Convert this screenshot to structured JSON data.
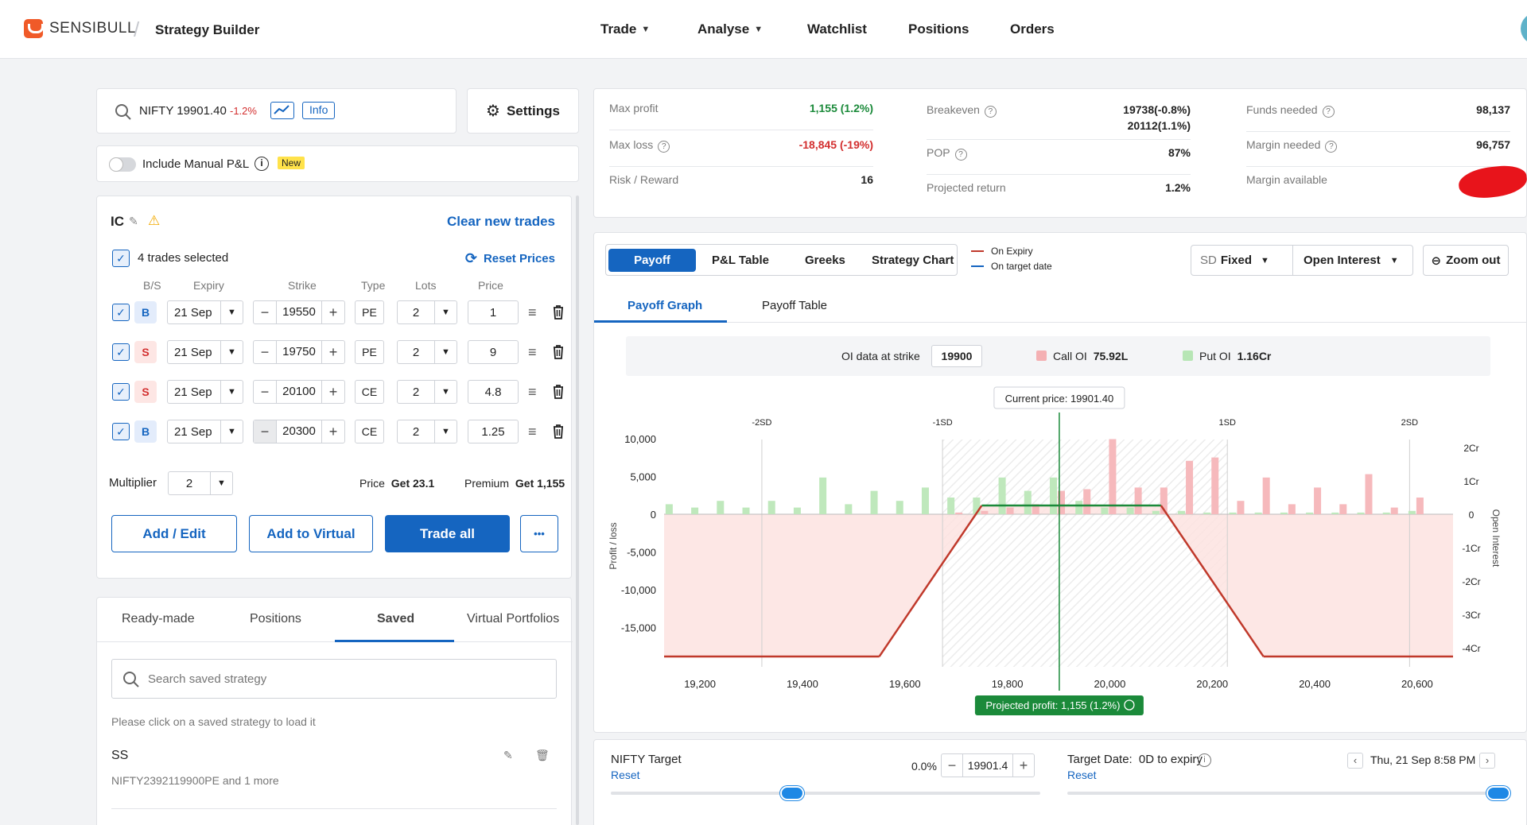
{
  "header": {
    "brand": "SENSIBULL",
    "page_title": "Strategy Builder",
    "nav": [
      {
        "label": "Trade",
        "dropdown": true
      },
      {
        "label": "Analyse",
        "dropdown": true
      },
      {
        "label": "Watchlist",
        "dropdown": false
      },
      {
        "label": "Positions",
        "dropdown": false
      },
      {
        "label": "Orders",
        "dropdown": false
      }
    ]
  },
  "search": {
    "symbol": "NIFTY",
    "price": "19901.40",
    "change": "-1.2%",
    "info_label": "Info",
    "settings_label": "Settings"
  },
  "manual_pnl": {
    "label": "Include Manual P&L",
    "badge": "New"
  },
  "strategy": {
    "name": "IC",
    "clear_label": "Clear new trades",
    "trades_selected": "4 trades selected",
    "reset_prices": "Reset Prices",
    "columns": [
      "B/S",
      "Expiry",
      "Strike",
      "Type",
      "Lots",
      "Price"
    ],
    "trades": [
      {
        "side": "B",
        "expiry": "21 Sep",
        "strike": "19550",
        "type": "PE",
        "lots": "2",
        "price": "1"
      },
      {
        "side": "S",
        "expiry": "21 Sep",
        "strike": "19750",
        "type": "PE",
        "lots": "2",
        "price": "9"
      },
      {
        "side": "S",
        "expiry": "21 Sep",
        "strike": "20100",
        "type": "CE",
        "lots": "2",
        "price": "4.8"
      },
      {
        "side": "B",
        "expiry": "21 Sep",
        "strike": "20300",
        "type": "CE",
        "lots": "2",
        "price": "1.25"
      }
    ],
    "multiplier_label": "Multiplier",
    "multiplier": "2",
    "price_label": "Price",
    "price_value": "Get 23.1",
    "premium_label": "Premium",
    "premium_value": "Get 1,155",
    "buttons": {
      "add_edit": "Add / Edit",
      "add_virtual": "Add to Virtual",
      "trade_all": "Trade all",
      "more": "•••"
    }
  },
  "bottom_tabs": {
    "tabs": [
      "Ready-made",
      "Positions",
      "Saved",
      "Virtual Portfolios"
    ],
    "active": 2,
    "search_placeholder": "Search saved strategy",
    "hint": "Please click on a saved strategy to load it",
    "saved": [
      {
        "name": "SS",
        "detail": "NIFTY2392119900PE and 1 more"
      }
    ]
  },
  "stats": {
    "col1": [
      {
        "label": "Max profit",
        "value": "1,155 (1.2%)",
        "color": "#1b8a3a"
      },
      {
        "label": "Max loss",
        "value": "-18,845 (-19%)",
        "color": "#d32f2f"
      },
      {
        "label": "Risk / Reward",
        "value": "16",
        "color": "#222222"
      }
    ],
    "col2": [
      {
        "label": "Breakeven",
        "value": "19738(-0.8%)",
        "value2": "20112(1.1%)"
      },
      {
        "label": "POP",
        "value": "87%"
      },
      {
        "label": "Projected return",
        "value": "1.2%"
      }
    ],
    "col3": [
      {
        "label": "Funds needed",
        "value": "98,137"
      },
      {
        "label": "Margin needed",
        "value": "96,757"
      },
      {
        "label": "Margin available",
        "value": ""
      }
    ]
  },
  "chart_tabs": {
    "tabs": [
      "Payoff",
      "P&L Table",
      "Greeks",
      "Strategy Chart"
    ],
    "active": 0,
    "legend": [
      "On Expiry",
      "On target date"
    ],
    "sd_label": "SD",
    "sd_value": "Fixed",
    "oi_select": "Open Interest",
    "zoom_out": "Zoom out",
    "subtabs": [
      "Payoff Graph",
      "Payoff Table"
    ],
    "oi_strike_label": "OI data at strike",
    "oi_strike": "19900",
    "call_oi_label": "Call OI",
    "call_oi_value": "75.92L",
    "put_oi_label": "Put OI",
    "put_oi_value": "1.16Cr"
  },
  "chart_data": {
    "type": "line",
    "xlabel": "",
    "ylabel": "Profit / loss",
    "y2label": "Open Interest",
    "current_price_label": "Current price: 19901.40",
    "projected_label": "Projected profit: 1,155 (1.2%)",
    "x_ticks": [
      "19,200",
      "19,400",
      "19,600",
      "19,800",
      "20,000",
      "20,200",
      "20,400",
      "20,600"
    ],
    "y_ticks": [
      "10,000",
      "5,000",
      "0",
      "-5,000",
      "-10,000",
      "-15,000"
    ],
    "y2_ticks": [
      "2Cr",
      "1Cr",
      "0",
      "-1Cr",
      "-2Cr",
      "-3Cr",
      "-4Cr"
    ],
    "sd_ticks": [
      "-2SD",
      "-1SD",
      "1SD",
      "2SD"
    ],
    "xlim": [
      19130,
      20670
    ],
    "ylim": [
      -18845,
      10500
    ],
    "current_price": 19901.4,
    "series": [
      {
        "name": "On Expiry",
        "color": "#c0392b",
        "x": [
          19130,
          19550,
          19750,
          20100,
          20300,
          20670
        ],
        "y": [
          -18845,
          -18845,
          1155,
          1155,
          -18845,
          -18845
        ]
      }
    ],
    "oi_bars": {
      "strikes": [
        19150,
        19200,
        19250,
        19300,
        19350,
        19400,
        19450,
        19500,
        19550,
        19600,
        19650,
        19700,
        19750,
        19800,
        19850,
        19900,
        19950,
        20000,
        20050,
        20100,
        20150,
        20200,
        20250,
        20300,
        20350,
        20400,
        20450,
        20500,
        20550,
        20600
      ],
      "put": [
        0.3,
        0.2,
        0.4,
        0.2,
        0.4,
        0.2,
        1.1,
        0.3,
        0.7,
        0.4,
        0.8,
        0.5,
        0.5,
        1.1,
        0.7,
        1.1,
        0.4,
        0.2,
        0.2,
        0.1,
        0.1,
        0.05,
        0.05,
        0.05,
        0.05,
        0.05,
        0.05,
        0.05,
        0.05,
        0.1
      ],
      "call": [
        0,
        0,
        0,
        0,
        0,
        0,
        0,
        0,
        0,
        0,
        0,
        0.05,
        0.1,
        0.2,
        0.3,
        0.7,
        0.75,
        2.25,
        0.8,
        0.8,
        1.6,
        1.7,
        0.4,
        1.1,
        0.3,
        0.8,
        0.3,
        1.2,
        0.2,
        0.5
      ]
    }
  },
  "target": {
    "label": "NIFTY Target",
    "reset": "Reset",
    "change": "0.0%",
    "value": "19901.4",
    "slider_fraction": 0.5,
    "date_label": "Target Date:",
    "date_expiry": "0D to expiry",
    "date_reset": "Reset",
    "date_value": "Thu, 21 Sep 8:58 PM",
    "date_slider_fraction": 1.0
  }
}
